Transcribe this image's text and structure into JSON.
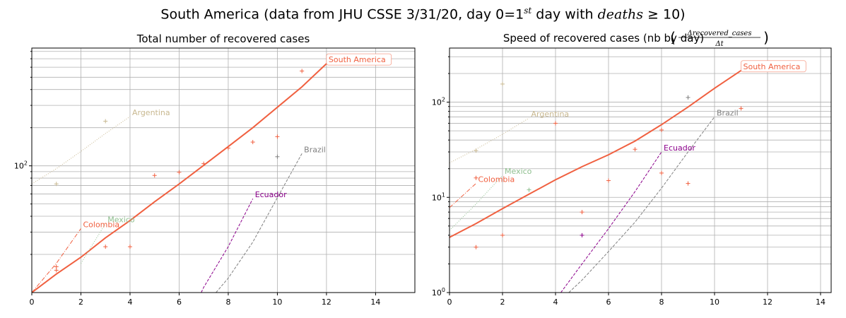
{
  "figure": {
    "title_prefix": "South America (data from JHU CSSE 3/31/20, day 0=1",
    "title_sup": "st",
    "title_mid": " day with ",
    "title_math": "deaths",
    "title_suffix": " ≥ 10)"
  },
  "chart_data": [
    {
      "type": "line",
      "title": "Total number of recovered cases",
      "yscale": "log",
      "xlim": [
        0,
        15.6
      ],
      "ylim": [
        10,
        850
      ],
      "xticks": [
        0,
        2,
        4,
        6,
        8,
        10,
        12,
        14
      ],
      "yticks": [
        {
          "value": 100,
          "base": "10",
          "exp": "2"
        }
      ],
      "grid": true,
      "series": [
        {
          "name": "South America",
          "color": "#f06040",
          "dash": "solid",
          "width": 2,
          "x": [
            0,
            1,
            2,
            3,
            4,
            5,
            6,
            7,
            8,
            9,
            10,
            11,
            12
          ],
          "y": [
            10,
            14,
            19,
            27,
            37,
            52,
            72,
            101,
            142,
            200,
            290,
            420,
            640
          ],
          "markers": {
            "x": [
              1,
              1,
              3,
              4,
              5,
              6,
              7,
              8,
              9,
              10,
              11
            ],
            "y": [
              15,
              16,
              23,
              23,
              84,
              89,
              104,
              138,
              154,
              170,
              560
            ]
          }
        },
        {
          "name": "Argentina",
          "color": "#c8b890",
          "dash": "1,2",
          "width": 1,
          "x": [
            0,
            1,
            2,
            3,
            4
          ],
          "y": [
            72,
            95,
            130,
            180,
            245
          ],
          "markers": {
            "x": [
              1,
              3
            ],
            "y": [
              72,
              225
            ]
          }
        },
        {
          "name": "Brazil",
          "color": "#808080",
          "dash": "4,2",
          "width": 1,
          "x": [
            7.5,
            8,
            9,
            10,
            11
          ],
          "y": [
            10,
            13,
            25,
            56,
            125
          ],
          "markers": {
            "x": [
              10
            ],
            "y": [
              118
            ]
          }
        },
        {
          "name": "Ecuador",
          "color": "#8b008b",
          "dash": "4,2",
          "width": 1,
          "x": [
            6.9,
            7,
            8,
            9
          ],
          "y": [
            10,
            11,
            23,
            55
          ],
          "markers": {
            "x": [],
            "y": []
          }
        },
        {
          "name": "Colombia",
          "color": "#f06040",
          "dash": "6,2,1,2",
          "width": 1,
          "x": [
            0,
            1,
            2
          ],
          "y": [
            10,
            17,
            32
          ],
          "markers": {
            "x": [],
            "y": []
          }
        },
        {
          "name": "Mexico",
          "color": "#8fbf8f",
          "dash": "1,2",
          "width": 1,
          "x": [
            2,
            3
          ],
          "y": [
            17,
            35
          ],
          "markers": {
            "x": [],
            "y": []
          }
        }
      ],
      "annotations": [
        {
          "text": "South America",
          "x": 12,
          "y": 640,
          "color": "#f06040",
          "boxed": true
        },
        {
          "text": "Argentina",
          "x": 4,
          "y": 245,
          "color": "#c8b890",
          "boxed": false
        },
        {
          "text": "Brazil",
          "x": 11,
          "y": 125,
          "color": "#808080",
          "boxed": false
        },
        {
          "text": "Ecuador",
          "x": 9,
          "y": 55,
          "color": "#8b008b",
          "boxed": false
        },
        {
          "text": "Colombia",
          "x": 2,
          "y": 32,
          "color": "#f06040",
          "boxed": false
        },
        {
          "text": "Mexico",
          "x": 3,
          "y": 35,
          "color": "#8fbf8f",
          "boxed": false
        }
      ]
    },
    {
      "type": "line",
      "title": "Speed of recovered cases (nb by day)",
      "title_frac_num": "Δrecovered_cases",
      "title_frac_den": "Δt",
      "yscale": "log",
      "xlim": [
        0,
        14.4
      ],
      "ylim": [
        1,
        370
      ],
      "xticks": [
        0,
        2,
        4,
        6,
        8,
        10,
        12,
        14
      ],
      "yticks": [
        {
          "value": 1,
          "base": "10",
          "exp": "0"
        },
        {
          "value": 10,
          "base": "10",
          "exp": "1"
        },
        {
          "value": 100,
          "base": "10",
          "exp": "2"
        }
      ],
      "grid": true,
      "series": [
        {
          "name": "South America",
          "color": "#f06040",
          "dash": "solid",
          "width": 2,
          "x": [
            0,
            1,
            2,
            3,
            4,
            5,
            6,
            7,
            8,
            9,
            10,
            11
          ],
          "y": [
            3.8,
            5.3,
            7.6,
            10.8,
            15.3,
            21,
            28,
            39,
            58,
            89,
            140,
            215
          ],
          "markers": {
            "x": [
              1,
              2,
              4,
              5,
              6,
              7,
              8,
              8,
              9,
              11
            ],
            "y": [
              3,
              4,
              60,
              7,
              15,
              32,
              18,
              51,
              14,
              86
            ]
          }
        },
        {
          "name": "Argentina",
          "color": "#c8b890",
          "dash": "1,2",
          "width": 1,
          "x": [
            0,
            1,
            2,
            3
          ],
          "y": [
            23,
            32,
            46,
            68
          ],
          "markers": {
            "x": [
              1,
              2
            ],
            "y": [
              31,
              155
            ]
          }
        },
        {
          "name": "Brazil",
          "color": "#808080",
          "dash": "4,2",
          "width": 1,
          "x": [
            4.5,
            5,
            6,
            7,
            8,
            9,
            10
          ],
          "y": [
            1,
            1.35,
            2.7,
            5.5,
            12.5,
            30,
            70
          ],
          "markers": {
            "x": [
              9
            ],
            "y": [
              112
            ]
          }
        },
        {
          "name": "Ecuador",
          "color": "#8b008b",
          "dash": "4,2",
          "width": 1,
          "x": [
            4.2,
            5,
            6,
            7,
            8
          ],
          "y": [
            1,
            2,
            4.7,
            11.5,
            30
          ],
          "markers": {
            "x": [
              5
            ],
            "y": [
              4
            ]
          }
        },
        {
          "name": "Colombia",
          "color": "#f06040",
          "dash": "6,2,1,2",
          "width": 1,
          "x": [
            0,
            1
          ],
          "y": [
            7.8,
            14
          ],
          "markers": {
            "x": [
              1
            ],
            "y": [
              16
            ]
          }
        },
        {
          "name": "Mexico",
          "color": "#8fbf8f",
          "dash": "1,2",
          "width": 1,
          "x": [
            0,
            1,
            2
          ],
          "y": [
            4.5,
            8.5,
            17
          ],
          "markers": {
            "x": [
              3
            ],
            "y": [
              12
            ]
          }
        }
      ],
      "annotations": [
        {
          "text": "South America",
          "x": 11,
          "y": 215,
          "color": "#f06040",
          "boxed": true
        },
        {
          "text": "Argentina",
          "x": 3,
          "y": 68,
          "color": "#c8b890",
          "boxed": false
        },
        {
          "text": "Brazil",
          "x": 10,
          "y": 70,
          "color": "#808080",
          "boxed": false
        },
        {
          "text": "Ecuador",
          "x": 8,
          "y": 30,
          "color": "#8b008b",
          "boxed": false
        },
        {
          "text": "Mexico",
          "x": 2,
          "y": 17,
          "color": "#8fbf8f",
          "boxed": false
        },
        {
          "text": "Colombia",
          "x": 1,
          "y": 14,
          "color": "#f06040",
          "boxed": false
        }
      ]
    }
  ]
}
